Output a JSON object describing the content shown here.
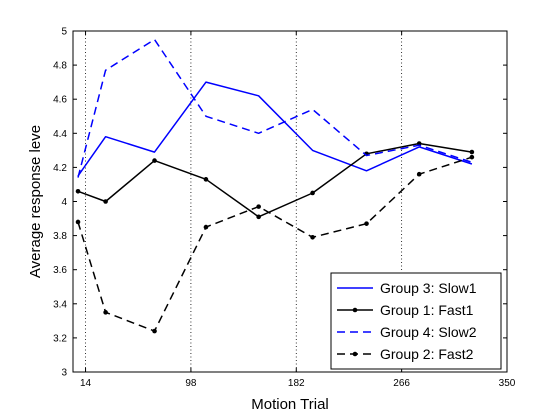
{
  "chart_data": {
    "type": "line",
    "xlabel": "Motion Trial",
    "ylabel": "Average response leve",
    "xlim": [
      4,
      350
    ],
    "ylim": [
      3,
      5
    ],
    "xticks": [
      14,
      98,
      182,
      266,
      350
    ],
    "yticks": [
      3,
      3.2,
      3.4,
      3.6,
      3.8,
      4,
      4.2,
      4.4,
      4.6,
      4.8,
      5
    ],
    "vlines": [
      14,
      98,
      182,
      266
    ],
    "legend_position": "bottom-right",
    "series": [
      {
        "name": "Group 3: Slow1",
        "color": "#0000ff",
        "linestyle": "solid",
        "marker": "none",
        "x": [
          8,
          30,
          69,
          110,
          152,
          195,
          238,
          280,
          322
        ],
        "y": [
          4.15,
          4.38,
          4.29,
          4.7,
          4.62,
          4.3,
          4.18,
          4.32,
          4.22
        ]
      },
      {
        "name": "Group 1: Fast1",
        "color": "#000000",
        "linestyle": "solid",
        "marker": "dot",
        "x": [
          8,
          30,
          69,
          110,
          152,
          195,
          238,
          280,
          322
        ],
        "y": [
          4.06,
          4.0,
          4.24,
          4.13,
          3.91,
          4.05,
          4.28,
          4.34,
          4.29
        ]
      },
      {
        "name": "Group 4: Slow2",
        "color": "#0000ff",
        "linestyle": "dashed",
        "marker": "none",
        "x": [
          8,
          30,
          69,
          110,
          152,
          195,
          238,
          280,
          322
        ],
        "y": [
          4.14,
          4.77,
          4.95,
          4.5,
          4.4,
          4.54,
          4.27,
          4.33,
          4.23
        ]
      },
      {
        "name": "Group 2: Fast2",
        "color": "#000000",
        "linestyle": "dashed",
        "marker": "dot",
        "x": [
          8,
          30,
          69,
          110,
          152,
          195,
          238,
          280,
          322
        ],
        "y": [
          3.88,
          3.35,
          3.24,
          3.85,
          3.97,
          3.79,
          3.87,
          4.16,
          4.26
        ]
      }
    ]
  }
}
